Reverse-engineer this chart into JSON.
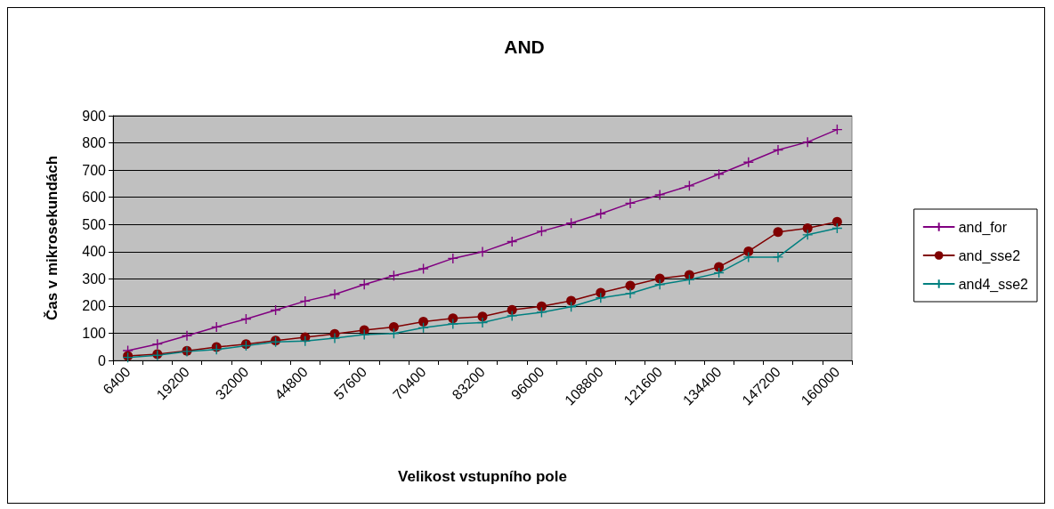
{
  "chart_data": {
    "type": "line",
    "title": "AND",
    "xlabel": "Velikost vstupního pole",
    "ylabel": "Čas v mikrosekundách",
    "categories": [
      "6400",
      null,
      "19200",
      null,
      "32000",
      null,
      "44800",
      null,
      "57600",
      null,
      "70400",
      null,
      "83200",
      null,
      "96000",
      null,
      "108800",
      null,
      "121600",
      null,
      "134400",
      null,
      "147200",
      null,
      "160000"
    ],
    "series": [
      {
        "name": "and_for",
        "color": "#800080",
        "marker": "cross",
        "values": [
          36,
          60,
          91,
          123,
          152,
          185,
          218,
          243,
          279,
          312,
          337,
          375,
          399,
          437,
          475,
          505,
          539,
          578,
          609,
          642,
          685,
          729,
          774,
          803,
          849
        ]
      },
      {
        "name": "and_sse2",
        "color": "#800000",
        "marker": "circle",
        "values": [
          16,
          23,
          35,
          49,
          60,
          73,
          85,
          97,
          111,
          123,
          142,
          155,
          161,
          186,
          199,
          219,
          249,
          275,
          301,
          314,
          344,
          401,
          472,
          486,
          510
        ]
      },
      {
        "name": "and4_sse2",
        "color": "#008080",
        "marker": "cross",
        "values": [
          11,
          19,
          33,
          40,
          54,
          68,
          71,
          82,
          95,
          99,
          120,
          134,
          139,
          164,
          177,
          197,
          230,
          246,
          279,
          297,
          322,
          380,
          380,
          462,
          486
        ]
      }
    ],
    "ylim": [
      0,
      900
    ],
    "yticks": [
      0,
      100,
      200,
      300,
      400,
      500,
      600,
      700,
      800,
      900
    ],
    "grid": "y",
    "legend": "right",
    "line_style": "solid"
  }
}
